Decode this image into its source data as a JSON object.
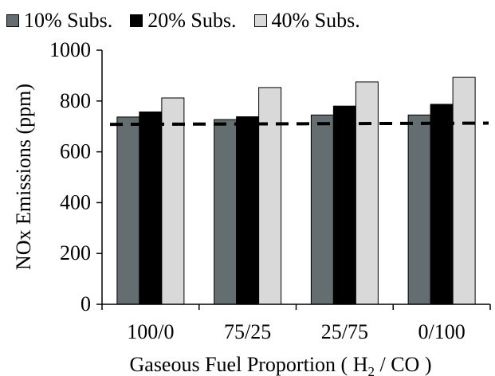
{
  "chart_data": {
    "type": "bar",
    "categories": [
      "100/0",
      "75/25",
      "25/75",
      "0/100"
    ],
    "series": [
      {
        "name": "10% Subs.",
        "color": "#646e70",
        "values": [
          737,
          727,
          745,
          745
        ]
      },
      {
        "name": "20% Subs.",
        "color": "#000000",
        "values": [
          757,
          738,
          780,
          787
        ]
      },
      {
        "name": "40% Subs.",
        "color": "#d9d9d9",
        "values": [
          812,
          853,
          875,
          893
        ]
      }
    ],
    "reference_line": {
      "style": "dashed",
      "color": "#000000",
      "values": [
        708,
        713
      ]
    },
    "ylabel": "NOx Emissions (ppm)",
    "xlabel": {
      "text": "Gaseous Fuel Proportion ( H",
      "subscript": "2",
      "suffix": " / CO )"
    },
    "ylim": [
      0,
      1000
    ],
    "yticks": [
      0,
      200,
      400,
      600,
      800,
      1000
    ],
    "grid": false,
    "legend_position": "top"
  }
}
